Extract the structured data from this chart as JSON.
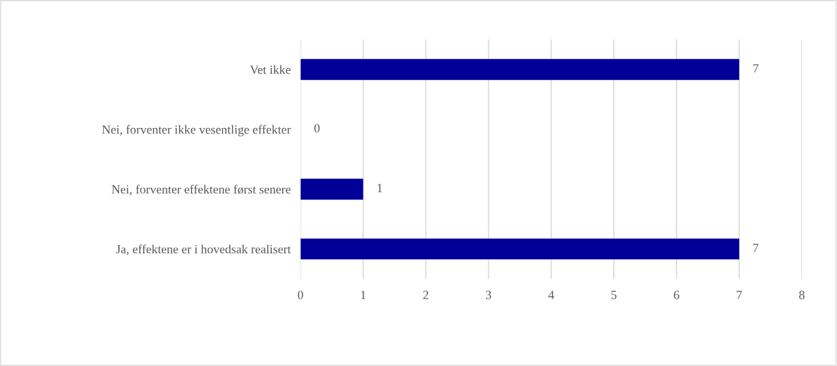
{
  "chart_data": {
    "type": "bar",
    "orientation": "horizontal",
    "categories": [
      "Vet ikke",
      "Nei, forventer ikke vesentlige effekter",
      "Nei, forventer effektene først senere",
      "Ja, effektene er i hovedsak realisert"
    ],
    "values": [
      7,
      0,
      1,
      7
    ],
    "color": "#000099",
    "xlim": [
      0,
      8
    ],
    "xticks": [
      0,
      1,
      2,
      3,
      4,
      5,
      6,
      7,
      8
    ],
    "grid": "x",
    "data_labels": true
  }
}
